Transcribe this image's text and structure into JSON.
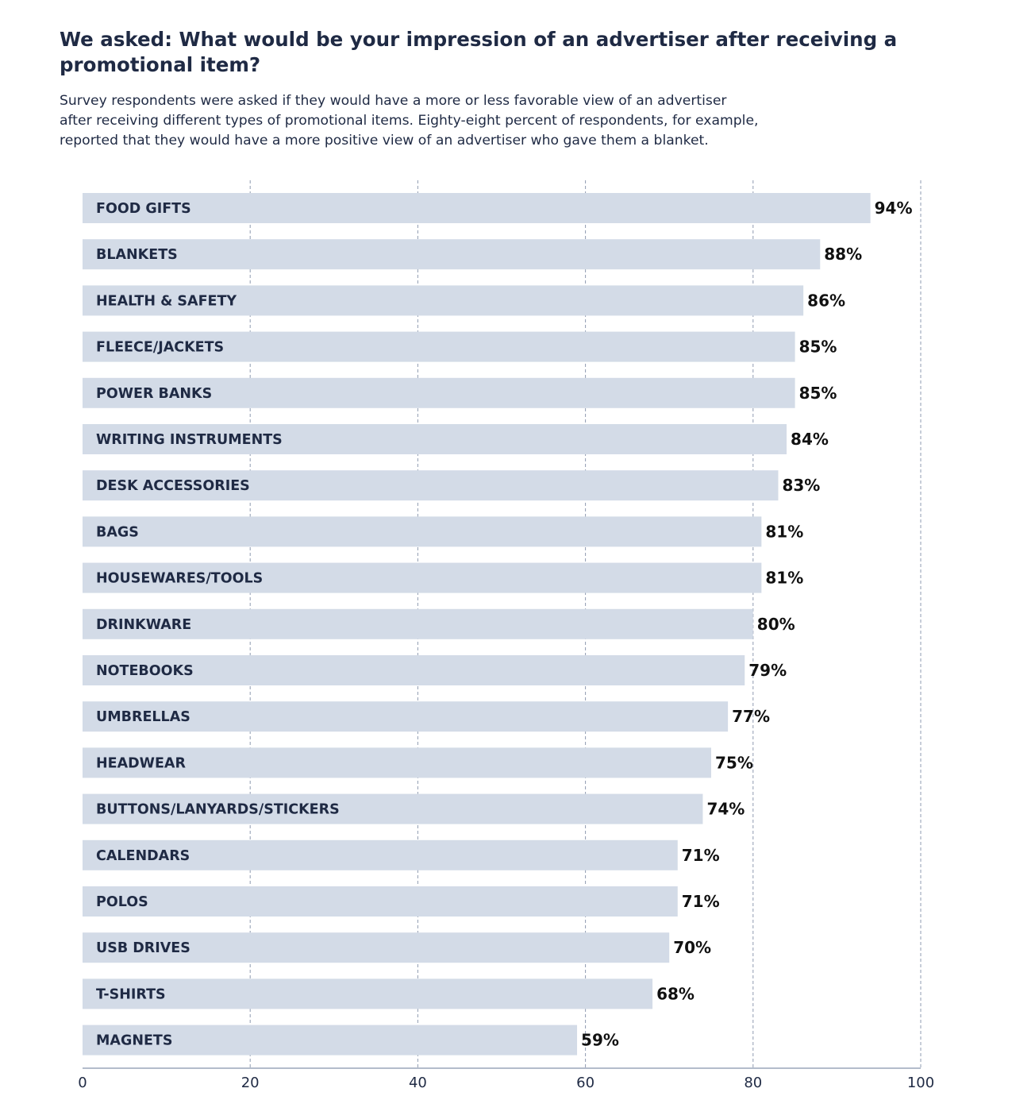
{
  "header": {
    "title": "We asked: What would be your impression of an advertiser after receiving a promotional item?",
    "subtitle_lines": [
      "Survey respondents were asked if they would have a more or less favorable view of an advertiser",
      "after receiving different types of promotional items. Eighty-eight percent of respondents, for example,",
      "reported that they would have a more positive view of an advertiser who gave them a blanket."
    ]
  },
  "colors": {
    "bar": "#d3dbe7",
    "grid": "#8f9bb0",
    "axis": "#9aa6ba",
    "category_text": "#1f2a44",
    "value_text": "#111111"
  },
  "chart_data": {
    "type": "bar",
    "orientation": "horizontal",
    "title": "We asked: What would be your impression of an advertiser after receiving a promotional item?",
    "xlabel": "",
    "ylabel": "",
    "xlim": [
      0,
      100
    ],
    "x_ticks": [
      0,
      20,
      40,
      60,
      80,
      100
    ],
    "grid": "vertical dashed",
    "legend": "none",
    "categories": [
      "FOOD GIFTS",
      "BLANKETS",
      "HEALTH & SAFETY",
      "FLEECE/JACKETS",
      "POWER BANKS",
      "WRITING INSTRUMENTS",
      "DESK ACCESSORIES",
      "BAGS",
      "HOUSEWARES/TOOLS",
      "DRINKWARE",
      "NOTEBOOKS",
      "UMBRELLAS",
      "HEADWEAR",
      "BUTTONS/LANYARDS/STICKERS",
      "CALENDARS",
      "POLOS",
      "USB DRIVES",
      "T-SHIRTS",
      "MAGNETS"
    ],
    "values": [
      94,
      88,
      86,
      85,
      85,
      84,
      83,
      81,
      81,
      80,
      79,
      77,
      75,
      74,
      71,
      71,
      70,
      68,
      59
    ],
    "value_labels": [
      "94%",
      "88%",
      "86%",
      "85%",
      "85%",
      "84%",
      "83%",
      "81%",
      "81%",
      "80%",
      "79%",
      "77%",
      "75%",
      "74%",
      "71%",
      "71%",
      "70%",
      "68%",
      "59%"
    ]
  }
}
